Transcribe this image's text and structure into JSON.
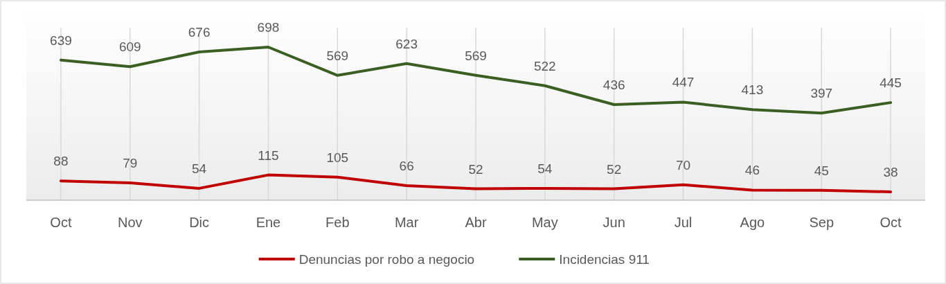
{
  "chart_data": {
    "type": "line",
    "categories": [
      "Oct",
      "Nov",
      "Dic",
      "Ene",
      "Feb",
      "Mar",
      "Abr",
      "May",
      "Jun",
      "Jul",
      "Ago",
      "Sep",
      "Oct"
    ],
    "series": [
      {
        "name": "Denuncias por robo a negocio",
        "color": "#c00000",
        "values": [
          88,
          79,
          54,
          115,
          105,
          66,
          52,
          54,
          52,
          70,
          46,
          45,
          38
        ]
      },
      {
        "name": "Incidencias 911",
        "color": "#3b5e23",
        "values": [
          639,
          609,
          676,
          698,
          569,
          623,
          569,
          522,
          436,
          447,
          413,
          397,
          445
        ]
      }
    ],
    "data_labels": true,
    "grid": "x",
    "legend": "bottom",
    "marker": "none",
    "line_style": "solid"
  }
}
